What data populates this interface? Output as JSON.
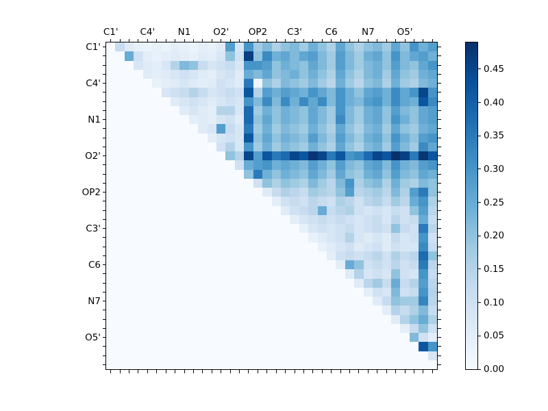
{
  "figure": {
    "background": "#ffffff",
    "frame_color": "#000000",
    "tick_color": "#000000",
    "text_color": "#000000"
  },
  "chart_data": {
    "type": "heatmap",
    "title": "",
    "xlabel": "",
    "ylabel": "",
    "grid_size": 36,
    "orientation": "upper-triangular",
    "x_tick_labels": [
      "C1'",
      "C4'",
      "N1",
      "O2'",
      "OP2",
      "C3'",
      "C6",
      "N7",
      "O5'"
    ],
    "y_tick_labels": [
      "C1'",
      "C4'",
      "N1",
      "O2'",
      "OP2",
      "C3'",
      "C6",
      "N7",
      "O5'"
    ],
    "tick_label_cell_positions": [
      0,
      4,
      8,
      12,
      16,
      20,
      24,
      28,
      32
    ],
    "vmin": 0.0,
    "vmax": 0.49,
    "colormap": "Blues",
    "colormap_stops": [
      "#f7fbff",
      "#deebf7",
      "#c6dbef",
      "#9ecae1",
      "#6baed6",
      "#4292c6",
      "#2171b5",
      "#08519c",
      "#08306b"
    ],
    "colorbar": {
      "tick_labels": [
        "0.00",
        "0.05",
        "0.10",
        "0.15",
        "0.20",
        "0.25",
        "0.30",
        "0.35",
        "0.40",
        "0.45"
      ],
      "tick_values": [
        0.0,
        0.05,
        0.1,
        0.15,
        0.2,
        0.25,
        0.3,
        0.35,
        0.4,
        0.45
      ],
      "position": "right"
    },
    "matrix": [
      [
        0,
        0.12,
        0.06,
        0.04,
        0.03,
        0.04,
        0.03,
        0.05,
        0.04,
        0.03,
        0.05,
        0.04,
        0.06,
        0.28,
        0.08,
        0.3,
        0.18,
        0.22,
        0.16,
        0.2,
        0.22,
        0.18,
        0.24,
        0.2,
        0.16,
        0.26,
        0.2,
        0.16,
        0.2,
        0.22,
        0.18,
        0.26,
        0.2,
        0.3,
        0.24,
        0.28
      ],
      [
        0,
        0,
        0.25,
        0.1,
        0.05,
        0.04,
        0.05,
        0.06,
        0.05,
        0.04,
        0.06,
        0.05,
        0.08,
        0.2,
        0.1,
        0.46,
        0.2,
        0.32,
        0.24,
        0.26,
        0.22,
        0.26,
        0.28,
        0.22,
        0.18,
        0.28,
        0.22,
        0.18,
        0.24,
        0.26,
        0.2,
        0.3,
        0.22,
        0.26,
        0.28,
        0.24
      ],
      [
        0,
        0,
        0,
        0.08,
        0.06,
        0.05,
        0.08,
        0.15,
        0.22,
        0.2,
        0.12,
        0.08,
        0.1,
        0.12,
        0.08,
        0.3,
        0.3,
        0.28,
        0.2,
        0.24,
        0.22,
        0.2,
        0.26,
        0.22,
        0.18,
        0.28,
        0.22,
        0.18,
        0.22,
        0.24,
        0.2,
        0.28,
        0.22,
        0.2,
        0.26,
        0.3
      ],
      [
        0,
        0,
        0,
        0,
        0.06,
        0.05,
        0.06,
        0.08,
        0.1,
        0.08,
        0.06,
        0.05,
        0.08,
        0.1,
        0.06,
        0.25,
        0.22,
        0.26,
        0.2,
        0.22,
        0.24,
        0.2,
        0.24,
        0.2,
        0.16,
        0.26,
        0.2,
        0.16,
        0.22,
        0.24,
        0.18,
        0.26,
        0.2,
        0.18,
        0.24,
        0.26
      ],
      [
        0,
        0,
        0,
        0,
        0,
        0.04,
        0.05,
        0.06,
        0.08,
        0.06,
        0.05,
        0.06,
        0.1,
        0.08,
        0.06,
        0.35,
        0.02,
        0.2,
        0.16,
        0.22,
        0.2,
        0.18,
        0.22,
        0.18,
        0.14,
        0.24,
        0.18,
        0.14,
        0.2,
        0.22,
        0.16,
        0.24,
        0.18,
        0.16,
        0.22,
        0.24
      ],
      [
        0,
        0,
        0,
        0,
        0,
        0,
        0.08,
        0.1,
        0.12,
        0.15,
        0.12,
        0.08,
        0.1,
        0.12,
        0.1,
        0.42,
        0.15,
        0.28,
        0.24,
        0.28,
        0.26,
        0.24,
        0.3,
        0.26,
        0.22,
        0.3,
        0.24,
        0.2,
        0.26,
        0.28,
        0.24,
        0.32,
        0.26,
        0.3,
        0.45,
        0.3
      ],
      [
        0,
        0,
        0,
        0,
        0,
        0,
        0,
        0.06,
        0.08,
        0.1,
        0.08,
        0.06,
        0.08,
        0.1,
        0.08,
        0.3,
        0.22,
        0.32,
        0.22,
        0.32,
        0.24,
        0.32,
        0.26,
        0.32,
        0.22,
        0.3,
        0.24,
        0.22,
        0.28,
        0.3,
        0.24,
        0.32,
        0.26,
        0.24,
        0.42,
        0.32
      ],
      [
        0,
        0,
        0,
        0,
        0,
        0,
        0,
        0,
        0.06,
        0.08,
        0.06,
        0.05,
        0.15,
        0.15,
        0.08,
        0.38,
        0.18,
        0.24,
        0.2,
        0.24,
        0.22,
        0.2,
        0.26,
        0.22,
        0.18,
        0.3,
        0.22,
        0.18,
        0.24,
        0.26,
        0.2,
        0.28,
        0.22,
        0.2,
        0.26,
        0.28
      ],
      [
        0,
        0,
        0,
        0,
        0,
        0,
        0,
        0,
        0,
        0.05,
        0.06,
        0.05,
        0.08,
        0.1,
        0.06,
        0.38,
        0.2,
        0.26,
        0.2,
        0.24,
        0.22,
        0.2,
        0.26,
        0.22,
        0.18,
        0.32,
        0.22,
        0.18,
        0.24,
        0.26,
        0.2,
        0.3,
        0.24,
        0.2,
        0.26,
        0.28
      ],
      [
        0,
        0,
        0,
        0,
        0,
        0,
        0,
        0,
        0,
        0,
        0.06,
        0.08,
        0.28,
        0.12,
        0.08,
        0.35,
        0.18,
        0.24,
        0.18,
        0.22,
        0.2,
        0.18,
        0.24,
        0.2,
        0.16,
        0.26,
        0.2,
        0.16,
        0.22,
        0.24,
        0.18,
        0.26,
        0.2,
        0.18,
        0.24,
        0.26
      ],
      [
        0,
        0,
        0,
        0,
        0,
        0,
        0,
        0,
        0,
        0,
        0,
        0.05,
        0.08,
        0.1,
        0.08,
        0.42,
        0.2,
        0.26,
        0.2,
        0.24,
        0.22,
        0.2,
        0.28,
        0.22,
        0.18,
        0.28,
        0.22,
        0.18,
        0.24,
        0.26,
        0.2,
        0.3,
        0.24,
        0.2,
        0.28,
        0.3
      ],
      [
        0,
        0,
        0,
        0,
        0,
        0,
        0,
        0,
        0,
        0,
        0,
        0,
        0.1,
        0.15,
        0.08,
        0.3,
        0.18,
        0.24,
        0.18,
        0.22,
        0.2,
        0.18,
        0.24,
        0.2,
        0.16,
        0.26,
        0.2,
        0.16,
        0.22,
        0.24,
        0.18,
        0.28,
        0.22,
        0.18,
        0.32,
        0.26
      ],
      [
        0,
        0,
        0,
        0,
        0,
        0,
        0,
        0,
        0,
        0,
        0,
        0,
        0,
        0.2,
        0.15,
        0.45,
        0.28,
        0.42,
        0.35,
        0.38,
        0.45,
        0.42,
        0.48,
        0.45,
        0.35,
        0.42,
        0.3,
        0.32,
        0.38,
        0.45,
        0.42,
        0.49,
        0.46,
        0.35,
        0.48,
        0.42
      ],
      [
        0,
        0,
        0,
        0,
        0,
        0,
        0,
        0,
        0,
        0,
        0,
        0,
        0,
        0,
        0.1,
        0.25,
        0.28,
        0.3,
        0.24,
        0.26,
        0.24,
        0.22,
        0.28,
        0.24,
        0.2,
        0.28,
        0.22,
        0.2,
        0.26,
        0.28,
        0.22,
        0.3,
        0.24,
        0.22,
        0.28,
        0.3
      ],
      [
        0,
        0,
        0,
        0,
        0,
        0,
        0,
        0,
        0,
        0,
        0,
        0,
        0,
        0,
        0,
        0.2,
        0.35,
        0.24,
        0.2,
        0.24,
        0.22,
        0.2,
        0.26,
        0.22,
        0.18,
        0.26,
        0.2,
        0.18,
        0.24,
        0.26,
        0.2,
        0.28,
        0.22,
        0.2,
        0.26,
        0.24
      ],
      [
        0,
        0,
        0,
        0,
        0,
        0,
        0,
        0,
        0,
        0,
        0,
        0,
        0,
        0,
        0,
        0,
        0.1,
        0.2,
        0.16,
        0.2,
        0.18,
        0.16,
        0.22,
        0.18,
        0.14,
        0.22,
        0.3,
        0.16,
        0.2,
        0.22,
        0.16,
        0.24,
        0.18,
        0.16,
        0.22,
        0.2
      ],
      [
        0,
        0,
        0,
        0,
        0,
        0,
        0,
        0,
        0,
        0,
        0,
        0,
        0,
        0,
        0,
        0,
        0,
        0.06,
        0.12,
        0.16,
        0.14,
        0.12,
        0.18,
        0.16,
        0.14,
        0.2,
        0.28,
        0.14,
        0.16,
        0.18,
        0.14,
        0.22,
        0.16,
        0.28,
        0.35,
        0.2
      ],
      [
        0,
        0,
        0,
        0,
        0,
        0,
        0,
        0,
        0,
        0,
        0,
        0,
        0,
        0,
        0,
        0,
        0,
        0,
        0.05,
        0.1,
        0.12,
        0.1,
        0.14,
        0.12,
        0.1,
        0.16,
        0.14,
        0.1,
        0.14,
        0.16,
        0.12,
        0.18,
        0.14,
        0.25,
        0.3,
        0.16
      ],
      [
        0,
        0,
        0,
        0,
        0,
        0,
        0,
        0,
        0,
        0,
        0,
        0,
        0,
        0,
        0,
        0,
        0,
        0,
        0,
        0.06,
        0.1,
        0.12,
        0.14,
        0.25,
        0.12,
        0.14,
        0.16,
        0.1,
        0.08,
        0.1,
        0.08,
        0.12,
        0.1,
        0.2,
        0.28,
        0.14
      ],
      [
        0,
        0,
        0,
        0,
        0,
        0,
        0,
        0,
        0,
        0,
        0,
        0,
        0,
        0,
        0,
        0,
        0,
        0,
        0,
        0,
        0.05,
        0.08,
        0.1,
        0.12,
        0.1,
        0.12,
        0.1,
        0.08,
        0.1,
        0.12,
        0.08,
        0.14,
        0.1,
        0.12,
        0.25,
        0.12
      ],
      [
        0,
        0,
        0,
        0,
        0,
        0,
        0,
        0,
        0,
        0,
        0,
        0,
        0,
        0,
        0,
        0,
        0,
        0,
        0,
        0,
        0,
        0.04,
        0.08,
        0.1,
        0.08,
        0.1,
        0.12,
        0.08,
        0.1,
        0.12,
        0.1,
        0.2,
        0.12,
        0.1,
        0.35,
        0.14
      ],
      [
        0,
        0,
        0,
        0,
        0,
        0,
        0,
        0,
        0,
        0,
        0,
        0,
        0,
        0,
        0,
        0,
        0,
        0,
        0,
        0,
        0,
        0,
        0.04,
        0.06,
        0.08,
        0.1,
        0.15,
        0.08,
        0.06,
        0.08,
        0.06,
        0.12,
        0.08,
        0.1,
        0.3,
        0.1
      ],
      [
        0,
        0,
        0,
        0,
        0,
        0,
        0,
        0,
        0,
        0,
        0,
        0,
        0,
        0,
        0,
        0,
        0,
        0,
        0,
        0,
        0,
        0,
        0,
        0.04,
        0.06,
        0.08,
        0.1,
        0.06,
        0.08,
        0.1,
        0.06,
        0.1,
        0.08,
        0.08,
        0.32,
        0.12
      ],
      [
        0,
        0,
        0,
        0,
        0,
        0,
        0,
        0,
        0,
        0,
        0,
        0,
        0,
        0,
        0,
        0,
        0,
        0,
        0,
        0,
        0,
        0,
        0,
        0,
        0.05,
        0.1,
        0.12,
        0.1,
        0.12,
        0.14,
        0.1,
        0.16,
        0.12,
        0.14,
        0.38,
        0.2
      ],
      [
        0,
        0,
        0,
        0,
        0,
        0,
        0,
        0,
        0,
        0,
        0,
        0,
        0,
        0,
        0,
        0,
        0,
        0,
        0,
        0,
        0,
        0,
        0,
        0,
        0,
        0.05,
        0.25,
        0.2,
        0.1,
        0.12,
        0.1,
        0.14,
        0.1,
        0.12,
        0.35,
        0.14
      ],
      [
        0,
        0,
        0,
        0,
        0,
        0,
        0,
        0,
        0,
        0,
        0,
        0,
        0,
        0,
        0,
        0,
        0,
        0,
        0,
        0,
        0,
        0,
        0,
        0,
        0,
        0,
        0.06,
        0.15,
        0.08,
        0.1,
        0.08,
        0.2,
        0.1,
        0.08,
        0.3,
        0.12
      ],
      [
        0,
        0,
        0,
        0,
        0,
        0,
        0,
        0,
        0,
        0,
        0,
        0,
        0,
        0,
        0,
        0,
        0,
        0,
        0,
        0,
        0,
        0,
        0,
        0,
        0,
        0,
        0,
        0.06,
        0.14,
        0.18,
        0.12,
        0.25,
        0.12,
        0.15,
        0.28,
        0.14
      ],
      [
        0,
        0,
        0,
        0,
        0,
        0,
        0,
        0,
        0,
        0,
        0,
        0,
        0,
        0,
        0,
        0,
        0,
        0,
        0,
        0,
        0,
        0,
        0,
        0,
        0,
        0,
        0,
        0,
        0.05,
        0.1,
        0.08,
        0.22,
        0.1,
        0.12,
        0.3,
        0.15
      ],
      [
        0,
        0,
        0,
        0,
        0,
        0,
        0,
        0,
        0,
        0,
        0,
        0,
        0,
        0,
        0,
        0,
        0,
        0,
        0,
        0,
        0,
        0,
        0,
        0,
        0,
        0,
        0,
        0,
        0,
        0.06,
        0.12,
        0.2,
        0.18,
        0.18,
        0.33,
        0.14
      ],
      [
        0,
        0,
        0,
        0,
        0,
        0,
        0,
        0,
        0,
        0,
        0,
        0,
        0,
        0,
        0,
        0,
        0,
        0,
        0,
        0,
        0,
        0,
        0,
        0,
        0,
        0,
        0,
        0,
        0,
        0,
        0.05,
        0.15,
        0.12,
        0.16,
        0.22,
        0.12
      ],
      [
        0,
        0,
        0,
        0,
        0,
        0,
        0,
        0,
        0,
        0,
        0,
        0,
        0,
        0,
        0,
        0,
        0,
        0,
        0,
        0,
        0,
        0,
        0,
        0,
        0,
        0,
        0,
        0,
        0,
        0,
        0,
        0.06,
        0.15,
        0.2,
        0.25,
        0.16
      ],
      [
        0,
        0,
        0,
        0,
        0,
        0,
        0,
        0,
        0,
        0,
        0,
        0,
        0,
        0,
        0,
        0,
        0,
        0,
        0,
        0,
        0,
        0,
        0,
        0,
        0,
        0,
        0,
        0,
        0,
        0,
        0,
        0,
        0.05,
        0.12,
        0.2,
        0.1
      ],
      [
        0,
        0,
        0,
        0,
        0,
        0,
        0,
        0,
        0,
        0,
        0,
        0,
        0,
        0,
        0,
        0,
        0,
        0,
        0,
        0,
        0,
        0,
        0,
        0,
        0,
        0,
        0,
        0,
        0,
        0,
        0,
        0,
        0,
        0.22,
        0.1,
        0.05
      ],
      [
        0,
        0,
        0,
        0,
        0,
        0,
        0,
        0,
        0,
        0,
        0,
        0,
        0,
        0,
        0,
        0,
        0,
        0,
        0,
        0,
        0,
        0,
        0,
        0,
        0,
        0,
        0,
        0,
        0,
        0,
        0,
        0,
        0,
        0,
        0.42,
        0.3
      ],
      [
        0,
        0,
        0,
        0,
        0,
        0,
        0,
        0,
        0,
        0,
        0,
        0,
        0,
        0,
        0,
        0,
        0,
        0,
        0,
        0,
        0,
        0,
        0,
        0,
        0,
        0,
        0,
        0,
        0,
        0,
        0,
        0,
        0,
        0,
        0,
        0.08
      ],
      [
        0,
        0,
        0,
        0,
        0,
        0,
        0,
        0,
        0,
        0,
        0,
        0,
        0,
        0,
        0,
        0,
        0,
        0,
        0,
        0,
        0,
        0,
        0,
        0,
        0,
        0,
        0,
        0,
        0,
        0,
        0,
        0,
        0,
        0,
        0,
        0
      ]
    ]
  }
}
